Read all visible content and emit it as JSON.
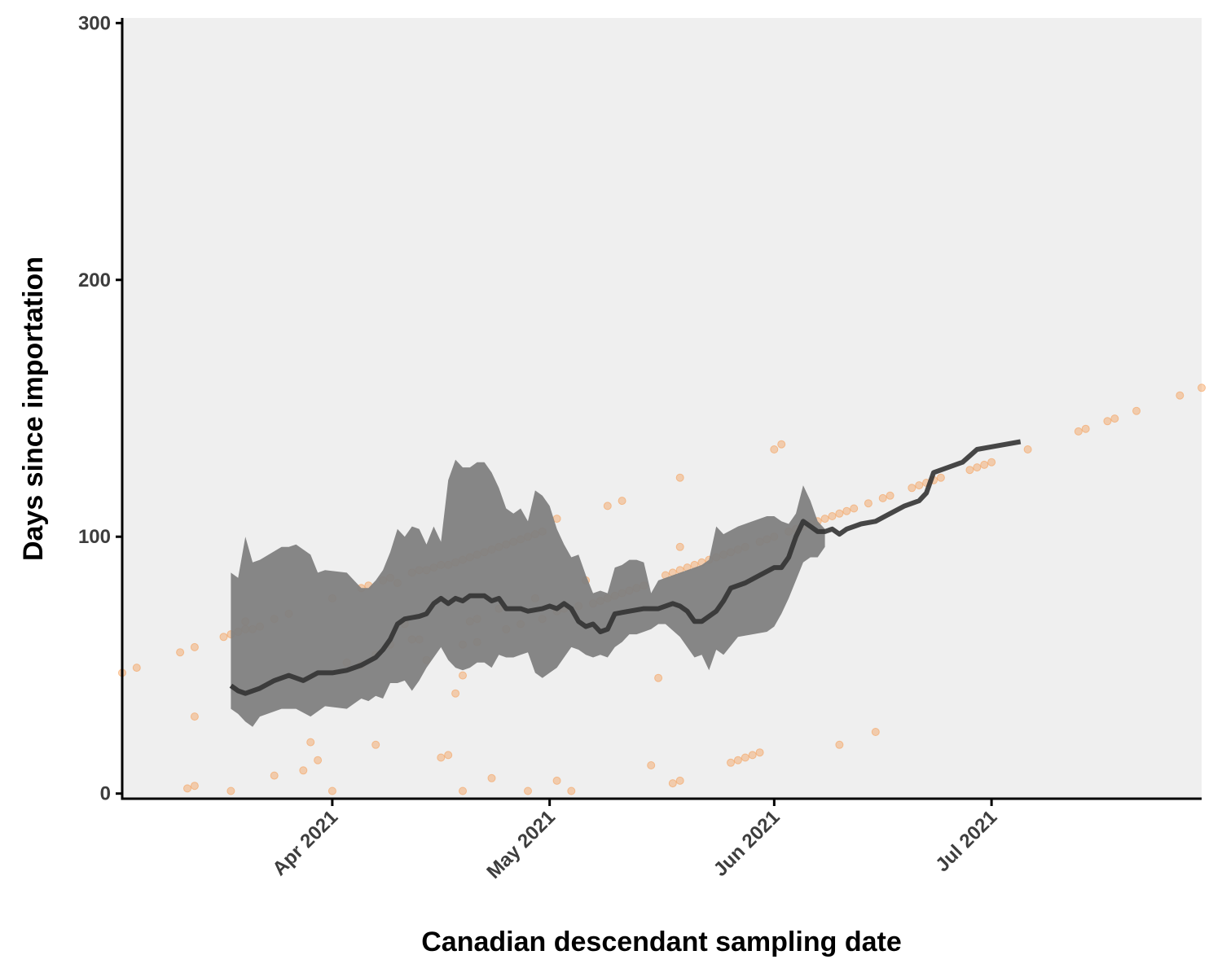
{
  "chart_data": {
    "type": "scatter",
    "xlabel": "Canadian descendant sampling date",
    "ylabel": "Days since importation",
    "xlim": [
      "2021-03-03",
      "2021-07-30"
    ],
    "ylim": [
      -2,
      302
    ],
    "y_ticks": [
      0,
      100,
      200,
      300
    ],
    "x_ticks": [
      {
        "date": "2021-04-01",
        "label": "Apr 2021"
      },
      {
        "date": "2021-05-01",
        "label": "May 2021"
      },
      {
        "date": "2021-06-01",
        "label": "Jun 2021"
      },
      {
        "date": "2021-07-01",
        "label": "Jul 2021"
      }
    ],
    "panel_background": "#efefef",
    "grid": false,
    "colors": {
      "points": "#f5a05a",
      "ribbon": "#808080",
      "line": "#333333"
    },
    "points": [
      [
        "2021-03-03",
        47
      ],
      [
        "2021-03-05",
        49
      ],
      [
        "2021-03-11",
        55
      ],
      [
        "2021-03-13",
        57
      ],
      [
        "2021-03-12",
        2
      ],
      [
        "2021-03-13",
        3
      ],
      [
        "2021-03-13",
        30
      ],
      [
        "2021-03-17",
        61
      ],
      [
        "2021-03-18",
        62
      ],
      [
        "2021-03-19",
        63
      ],
      [
        "2021-03-20",
        64
      ],
      [
        "2021-03-20",
        67
      ],
      [
        "2021-03-21",
        64
      ],
      [
        "2021-03-22",
        65
      ],
      [
        "2021-03-18",
        1
      ],
      [
        "2021-03-24",
        68
      ],
      [
        "2021-03-26",
        70
      ],
      [
        "2021-03-24",
        7
      ],
      [
        "2021-03-28",
        9
      ],
      [
        "2021-03-29",
        20
      ],
      [
        "2021-03-30",
        13
      ],
      [
        "2021-04-01",
        1
      ],
      [
        "2021-04-01",
        76
      ],
      [
        "2021-04-03",
        51
      ],
      [
        "2021-04-05",
        50
      ],
      [
        "2021-04-07",
        54
      ],
      [
        "2021-04-05",
        80
      ],
      [
        "2021-04-06",
        81
      ],
      [
        "2021-04-08",
        83
      ],
      [
        "2021-04-09",
        84
      ],
      [
        "2021-04-10",
        82
      ],
      [
        "2021-04-07",
        19
      ],
      [
        "2021-04-09",
        58
      ],
      [
        "2021-04-11",
        66
      ],
      [
        "2021-04-12",
        86
      ],
      [
        "2021-04-13",
        87
      ],
      [
        "2021-04-14",
        87
      ],
      [
        "2021-04-15",
        88
      ],
      [
        "2021-04-16",
        89
      ],
      [
        "2021-04-17",
        89
      ],
      [
        "2021-04-18",
        90
      ],
      [
        "2021-04-19",
        91
      ],
      [
        "2021-04-20",
        92
      ],
      [
        "2021-04-21",
        93
      ],
      [
        "2021-04-22",
        94
      ],
      [
        "2021-04-23",
        95
      ],
      [
        "2021-04-24",
        96
      ],
      [
        "2021-04-25",
        97
      ],
      [
        "2021-04-26",
        98
      ],
      [
        "2021-04-27",
        99
      ],
      [
        "2021-04-28",
        100
      ],
      [
        "2021-04-29",
        101
      ],
      [
        "2021-04-30",
        102
      ],
      [
        "2021-04-12",
        60
      ],
      [
        "2021-04-13",
        60
      ],
      [
        "2021-04-14",
        52
      ],
      [
        "2021-04-16",
        14
      ],
      [
        "2021-04-17",
        15
      ],
      [
        "2021-04-18",
        39
      ],
      [
        "2021-04-19",
        46
      ],
      [
        "2021-04-19",
        1
      ],
      [
        "2021-04-19",
        58
      ],
      [
        "2021-04-20",
        67
      ],
      [
        "2021-04-21",
        68
      ],
      [
        "2021-04-21",
        59
      ],
      [
        "2021-04-23",
        6
      ],
      [
        "2021-04-24",
        72
      ],
      [
        "2021-04-25",
        64
      ],
      [
        "2021-04-27",
        66
      ],
      [
        "2021-04-28",
        1
      ],
      [
        "2021-04-29",
        76
      ],
      [
        "2021-04-30",
        68
      ],
      [
        "2021-05-02",
        107
      ],
      [
        "2021-05-02",
        71
      ],
      [
        "2021-05-02",
        5
      ],
      [
        "2021-05-03",
        72
      ],
      [
        "2021-05-04",
        1
      ],
      [
        "2021-05-05",
        73
      ],
      [
        "2021-05-06",
        83
      ],
      [
        "2021-05-07",
        74
      ],
      [
        "2021-05-08",
        75
      ],
      [
        "2021-05-09",
        112
      ],
      [
        "2021-05-09",
        76
      ],
      [
        "2021-05-10",
        77
      ],
      [
        "2021-05-11",
        114
      ],
      [
        "2021-05-11",
        78
      ],
      [
        "2021-05-12",
        79
      ],
      [
        "2021-05-13",
        80
      ],
      [
        "2021-05-14",
        81
      ],
      [
        "2021-05-15",
        11
      ],
      [
        "2021-05-16",
        45
      ],
      [
        "2021-05-17",
        85
      ],
      [
        "2021-05-18",
        86
      ],
      [
        "2021-05-18",
        4
      ],
      [
        "2021-05-19",
        5
      ],
      [
        "2021-05-19",
        87
      ],
      [
        "2021-05-20",
        88
      ],
      [
        "2021-05-21",
        89
      ],
      [
        "2021-05-19",
        96
      ],
      [
        "2021-05-19",
        123
      ],
      [
        "2021-05-22",
        90
      ],
      [
        "2021-05-23",
        91
      ],
      [
        "2021-05-24",
        92
      ],
      [
        "2021-05-25",
        93
      ],
      [
        "2021-05-26",
        94
      ],
      [
        "2021-05-27",
        95
      ],
      [
        "2021-05-28",
        96
      ],
      [
        "2021-05-26",
        12
      ],
      [
        "2021-05-27",
        13
      ],
      [
        "2021-05-28",
        14
      ],
      [
        "2021-05-29",
        15
      ],
      [
        "2021-05-30",
        16
      ],
      [
        "2021-05-30",
        98
      ],
      [
        "2021-05-31",
        99
      ],
      [
        "2021-06-01",
        100
      ],
      [
        "2021-06-01",
        134
      ],
      [
        "2021-06-02",
        136
      ],
      [
        "2021-06-03",
        102
      ],
      [
        "2021-06-04",
        103
      ],
      [
        "2021-06-05",
        104
      ],
      [
        "2021-06-06",
        105
      ],
      [
        "2021-06-07",
        106
      ],
      [
        "2021-06-08",
        107
      ],
      [
        "2021-06-09",
        108
      ],
      [
        "2021-06-10",
        109
      ],
      [
        "2021-06-11",
        110
      ],
      [
        "2021-06-12",
        111
      ],
      [
        "2021-06-10",
        19
      ],
      [
        "2021-06-14",
        113
      ],
      [
        "2021-06-16",
        115
      ],
      [
        "2021-06-17",
        116
      ],
      [
        "2021-06-15",
        24
      ],
      [
        "2021-06-20",
        119
      ],
      [
        "2021-06-21",
        120
      ],
      [
        "2021-06-22",
        121
      ],
      [
        "2021-06-23",
        122
      ],
      [
        "2021-06-24",
        123
      ],
      [
        "2021-06-28",
        126
      ],
      [
        "2021-06-29",
        127
      ],
      [
        "2021-06-30",
        128
      ],
      [
        "2021-07-01",
        129
      ],
      [
        "2021-07-06",
        134
      ],
      [
        "2021-07-13",
        141
      ],
      [
        "2021-07-14",
        142
      ],
      [
        "2021-07-17",
        145
      ],
      [
        "2021-07-18",
        146
      ],
      [
        "2021-07-21",
        149
      ],
      [
        "2021-07-27",
        155
      ],
      [
        "2021-07-30",
        158
      ]
    ],
    "line": [
      [
        "2021-03-18",
        42
      ],
      [
        "2021-03-19",
        40
      ],
      [
        "2021-03-20",
        39
      ],
      [
        "2021-03-22",
        41
      ],
      [
        "2021-03-24",
        44
      ],
      [
        "2021-03-26",
        46
      ],
      [
        "2021-03-28",
        44
      ],
      [
        "2021-03-30",
        47
      ],
      [
        "2021-04-01",
        47
      ],
      [
        "2021-04-03",
        48
      ],
      [
        "2021-04-05",
        50
      ],
      [
        "2021-04-07",
        53
      ],
      [
        "2021-04-08",
        56
      ],
      [
        "2021-04-09",
        60
      ],
      [
        "2021-04-10",
        66
      ],
      [
        "2021-04-11",
        68
      ],
      [
        "2021-04-13",
        69
      ],
      [
        "2021-04-14",
        70
      ],
      [
        "2021-04-15",
        74
      ],
      [
        "2021-04-16",
        76
      ],
      [
        "2021-04-17",
        74
      ],
      [
        "2021-04-18",
        76
      ],
      [
        "2021-04-19",
        75
      ],
      [
        "2021-04-20",
        77
      ],
      [
        "2021-04-22",
        77
      ],
      [
        "2021-04-23",
        75
      ],
      [
        "2021-04-24",
        76
      ],
      [
        "2021-04-25",
        72
      ],
      [
        "2021-04-27",
        72
      ],
      [
        "2021-04-28",
        71
      ],
      [
        "2021-04-30",
        72
      ],
      [
        "2021-05-01",
        73
      ],
      [
        "2021-05-02",
        72
      ],
      [
        "2021-05-03",
        74
      ],
      [
        "2021-05-04",
        72
      ],
      [
        "2021-05-05",
        67
      ],
      [
        "2021-05-06",
        65
      ],
      [
        "2021-05-07",
        66
      ],
      [
        "2021-05-08",
        63
      ],
      [
        "2021-05-09",
        64
      ],
      [
        "2021-05-10",
        70
      ],
      [
        "2021-05-12",
        71
      ],
      [
        "2021-05-14",
        72
      ],
      [
        "2021-05-16",
        72
      ],
      [
        "2021-05-18",
        74
      ],
      [
        "2021-05-19",
        73
      ],
      [
        "2021-05-20",
        71
      ],
      [
        "2021-05-21",
        67
      ],
      [
        "2021-05-22",
        67
      ],
      [
        "2021-05-24",
        71
      ],
      [
        "2021-05-25",
        75
      ],
      [
        "2021-05-26",
        80
      ],
      [
        "2021-05-28",
        82
      ],
      [
        "2021-05-30",
        85
      ],
      [
        "2021-06-01",
        88
      ],
      [
        "2021-06-02",
        88
      ],
      [
        "2021-06-03",
        92
      ],
      [
        "2021-06-04",
        100
      ],
      [
        "2021-06-05",
        106
      ],
      [
        "2021-06-06",
        104
      ],
      [
        "2021-06-07",
        102
      ],
      [
        "2021-06-08",
        102
      ],
      [
        "2021-06-09",
        103
      ],
      [
        "2021-06-10",
        101
      ],
      [
        "2021-06-11",
        103
      ],
      [
        "2021-06-13",
        105
      ],
      [
        "2021-06-15",
        106
      ],
      [
        "2021-06-17",
        109
      ],
      [
        "2021-06-19",
        112
      ],
      [
        "2021-06-21",
        114
      ],
      [
        "2021-06-22",
        117
      ],
      [
        "2021-06-23",
        125
      ],
      [
        "2021-06-25",
        127
      ],
      [
        "2021-06-27",
        129
      ],
      [
        "2021-06-29",
        134
      ],
      [
        "2021-07-01",
        135
      ],
      [
        "2021-07-05",
        137
      ]
    ],
    "ribbon": [
      [
        "2021-03-18",
        33,
        86
      ],
      [
        "2021-03-19",
        31,
        84
      ],
      [
        "2021-03-20",
        28,
        100
      ],
      [
        "2021-03-21",
        26,
        90
      ],
      [
        "2021-03-22",
        30,
        91
      ],
      [
        "2021-03-25",
        33,
        96
      ],
      [
        "2021-03-26",
        33,
        96
      ],
      [
        "2021-03-27",
        33,
        97
      ],
      [
        "2021-03-29",
        30,
        93
      ],
      [
        "2021-03-30",
        32,
        86
      ],
      [
        "2021-03-31",
        34,
        87
      ],
      [
        "2021-04-03",
        33,
        86
      ],
      [
        "2021-04-04",
        35,
        83
      ],
      [
        "2021-04-05",
        37,
        80
      ],
      [
        "2021-04-06",
        36,
        80
      ],
      [
        "2021-04-07",
        38,
        83
      ],
      [
        "2021-04-08",
        37,
        87
      ],
      [
        "2021-04-09",
        43,
        94
      ],
      [
        "2021-04-10",
        43,
        103
      ],
      [
        "2021-04-11",
        44,
        100
      ],
      [
        "2021-04-12",
        40,
        104
      ],
      [
        "2021-04-13",
        44,
        103
      ],
      [
        "2021-04-14",
        49,
        97
      ],
      [
        "2021-04-15",
        53,
        104
      ],
      [
        "2021-04-16",
        57,
        98
      ],
      [
        "2021-04-17",
        52,
        122
      ],
      [
        "2021-04-18",
        49,
        130
      ],
      [
        "2021-04-19",
        48,
        127
      ],
      [
        "2021-04-20",
        49,
        127
      ],
      [
        "2021-04-21",
        51,
        129
      ],
      [
        "2021-04-22",
        51,
        129
      ],
      [
        "2021-04-23",
        49,
        125
      ],
      [
        "2021-04-24",
        54,
        119
      ],
      [
        "2021-04-25",
        53,
        111
      ],
      [
        "2021-04-26",
        53,
        109
      ],
      [
        "2021-04-27",
        54,
        111
      ],
      [
        "2021-04-28",
        55,
        106
      ],
      [
        "2021-04-29",
        47,
        118
      ],
      [
        "2021-04-30",
        45,
        116
      ],
      [
        "2021-05-01",
        47,
        112
      ],
      [
        "2021-05-02",
        49,
        103
      ],
      [
        "2021-05-03",
        53,
        97
      ],
      [
        "2021-05-04",
        57,
        92
      ],
      [
        "2021-05-05",
        56,
        93
      ],
      [
        "2021-05-06",
        54,
        85
      ],
      [
        "2021-05-07",
        53,
        78
      ],
      [
        "2021-05-08",
        54,
        79
      ],
      [
        "2021-05-09",
        53,
        78
      ],
      [
        "2021-05-10",
        57,
        88
      ],
      [
        "2021-05-11",
        59,
        89
      ],
      [
        "2021-05-12",
        62,
        91
      ],
      [
        "2021-05-13",
        62,
        91
      ],
      [
        "2021-05-14",
        63,
        90
      ],
      [
        "2021-05-15",
        64,
        78
      ],
      [
        "2021-05-16",
        66,
        83
      ],
      [
        "2021-05-17",
        66,
        84
      ],
      [
        "2021-05-19",
        61,
        86
      ],
      [
        "2021-05-21",
        53,
        88
      ],
      [
        "2021-05-22",
        54,
        89
      ],
      [
        "2021-05-23",
        48,
        91
      ],
      [
        "2021-05-24",
        56,
        104
      ],
      [
        "2021-05-25",
        54,
        101
      ],
      [
        "2021-05-27",
        61,
        104
      ],
      [
        "2021-05-29",
        62,
        106
      ],
      [
        "2021-05-31",
        63,
        108
      ],
      [
        "2021-06-01",
        65,
        108
      ],
      [
        "2021-06-02",
        70,
        106
      ],
      [
        "2021-06-03",
        76,
        105
      ],
      [
        "2021-06-04",
        83,
        109
      ],
      [
        "2021-06-05",
        90,
        120
      ],
      [
        "2021-06-06",
        92,
        114
      ],
      [
        "2021-06-07",
        92,
        106
      ],
      [
        "2021-06-08",
        96,
        103
      ]
    ]
  }
}
